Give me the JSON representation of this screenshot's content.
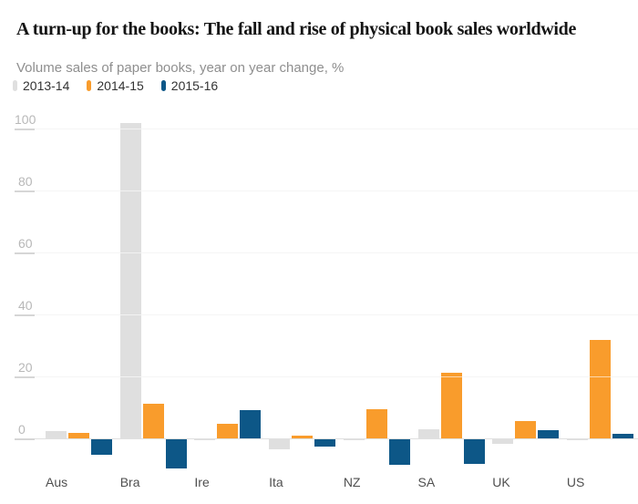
{
  "header": {
    "title": "A turn-up for the books: The fall and rise of physical book sales worldwide",
    "subtitle": "Volume sales of paper books, year on year change, %"
  },
  "chart_data": {
    "type": "bar",
    "title": "A turn-up for the books: The fall and rise of physical book sales worldwide",
    "subtitle": "Volume sales of paper books, year on year change, %",
    "categories": [
      "Aus",
      "Bra",
      "Ire",
      "Ita",
      "NZ",
      "SA",
      "UK",
      "US"
    ],
    "series": [
      {
        "name": "2013-14",
        "color": "#dfdfdf",
        "values": [
          2.4,
          101.9,
          -0.4,
          -3.1,
          -0.3,
          2.8,
          -1.6,
          -0.4
        ]
      },
      {
        "name": "2014-15",
        "color": "#f99c2c",
        "values": [
          1.9,
          11.2,
          4.8,
          1.0,
          9.3,
          21.2,
          5.7,
          31.8
        ]
      },
      {
        "name": "2015-16",
        "color": "#0d5787",
        "values": [
          -5.1,
          -9.3,
          9.0,
          -2.3,
          -8.2,
          -7.8,
          2.7,
          1.4
        ]
      }
    ],
    "xlabel": "",
    "ylabel": "",
    "yticks": [
      0,
      20,
      40,
      60,
      80,
      100
    ],
    "ylim": [
      -10.5,
      103
    ],
    "grid": true,
    "legend_position": "top",
    "colors": {
      "grid_line": "#e7e7e7",
      "zero_line": "#e0e0e0",
      "tick_text": "#b8b8b8",
      "category_text": "#4f4f4f",
      "legend_text": "#333333",
      "title_text": "#141414",
      "subtitle_text": "#8f8f8f",
      "background": "#ffffff"
    }
  }
}
